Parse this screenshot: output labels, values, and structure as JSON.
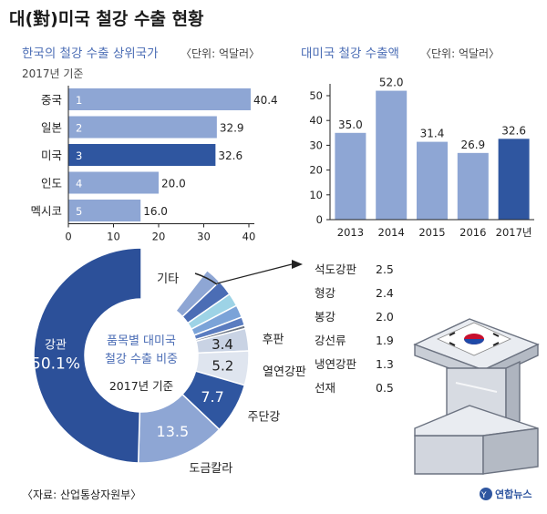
{
  "title": "대(對)미국 철강 수출 현황",
  "colors": {
    "accent": "#4b6db5",
    "bar_light": "#8ea6d4",
    "bar_dark": "#2f56a0",
    "pie_main": "#2c5099"
  },
  "source": "〈자료: 산업통상자원부〉",
  "credit": "연합뉴스",
  "chart_data": [
    {
      "type": "bar",
      "orientation": "horizontal",
      "title": "한국의 철강 수출 상위국가",
      "unit_note": "〈단위: 억달러〉",
      "subtitle": "2017년 기준",
      "categories": [
        "중국",
        "일본",
        "미국",
        "인도",
        "멕시코"
      ],
      "ranks": [
        "1",
        "2",
        "3",
        "4",
        "5"
      ],
      "values": [
        40.4,
        32.9,
        32.6,
        20.0,
        16.0
      ],
      "value_labels": [
        "40.4",
        "32.9",
        "32.6",
        "20.0",
        "16.0"
      ],
      "highlight": "미국",
      "xlim": [
        0,
        40
      ],
      "x_ticks": [
        "0",
        "10",
        "20",
        "30",
        "40"
      ]
    },
    {
      "type": "bar",
      "orientation": "vertical",
      "title": "대미국 철강 수출액",
      "unit_note": "〈단위: 억달러〉",
      "categories": [
        "2013",
        "2014",
        "2015",
        "2016",
        "2017년"
      ],
      "values": [
        35.0,
        52.0,
        31.4,
        26.9,
        32.6
      ],
      "value_labels": [
        "35.0",
        "52.0",
        "31.4",
        "26.9",
        "32.6"
      ],
      "highlight": "2017년",
      "ylim": [
        0,
        50
      ],
      "y_ticks": [
        "0",
        "10",
        "20",
        "30",
        "40",
        "50"
      ]
    },
    {
      "type": "pie",
      "title": "품목별 대미국 철강 수출 비중",
      "subtitle": "2017년 기준",
      "slices": [
        {
          "label": "기타",
          "value": 10.6,
          "value_label": ""
        },
        {
          "label": "석도강판",
          "value": 2.5,
          "value_label": ""
        },
        {
          "label": "형강",
          "value": 2.4,
          "value_label": ""
        },
        {
          "label": "봉강",
          "value": 2.0,
          "value_label": ""
        },
        {
          "label": "강선류",
          "value": 1.9,
          "value_label": ""
        },
        {
          "label": "냉연강판",
          "value": 1.3,
          "value_label": ""
        },
        {
          "label": "선재",
          "value": 0.5,
          "value_label": ""
        },
        {
          "label": "후판",
          "value": 3.4,
          "value_label": "3.4"
        },
        {
          "label": "열연강판",
          "value": 5.2,
          "value_label": "5.2"
        },
        {
          "label": "주단강",
          "value": 7.7,
          "value_label": "7.7"
        },
        {
          "label": "도금칼라",
          "value": 13.5,
          "value_label": "13.5"
        },
        {
          "label": "강관",
          "value": 50.1,
          "value_label": "50.1%"
        }
      ],
      "breakdown": [
        {
          "label": "석도강판",
          "value": "2.5"
        },
        {
          "label": "형강",
          "value": "2.4"
        },
        {
          "label": "봉강",
          "value": "2.0"
        },
        {
          "label": "강선류",
          "value": "1.9"
        },
        {
          "label": "냉연강판",
          "value": "1.3"
        },
        {
          "label": "선재",
          "value": "0.5"
        }
      ]
    }
  ]
}
